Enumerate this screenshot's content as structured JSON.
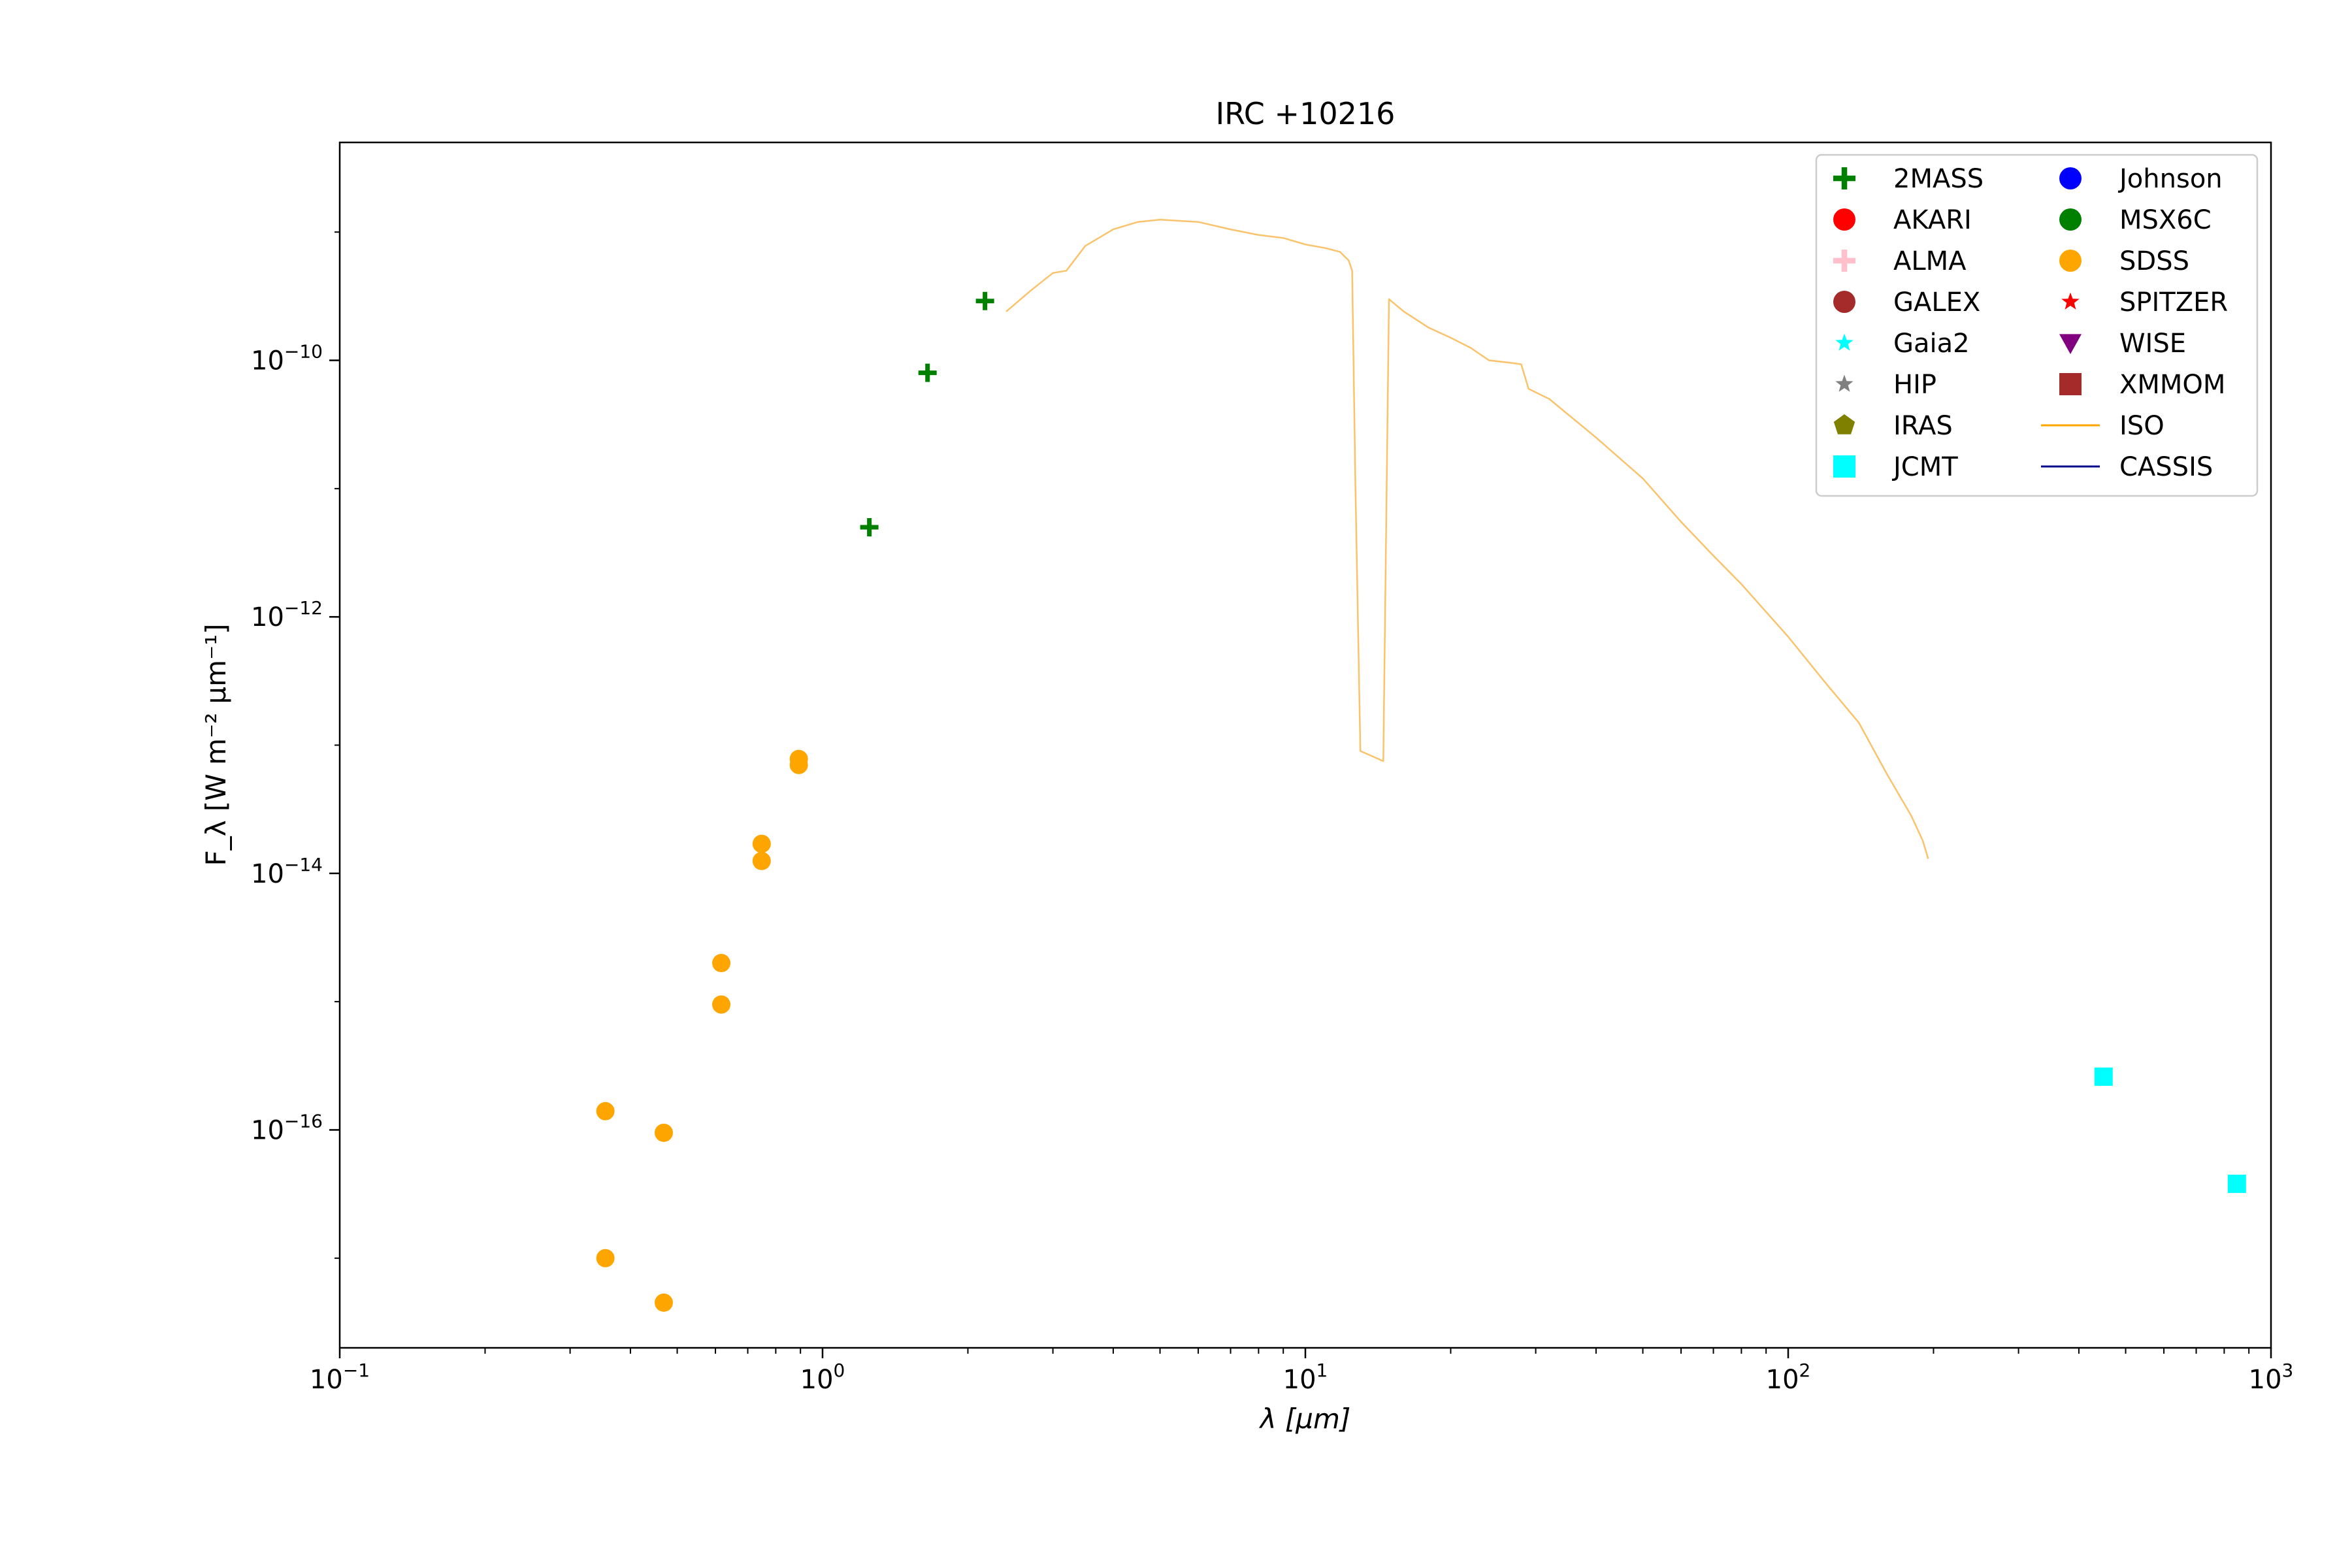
{
  "chart_data": {
    "type": "scatter",
    "title": "IRC +10216",
    "xlabel": "λ [μm]",
    "ylabel": "F_λ [W m⁻² μm⁻¹]",
    "xscale": "log",
    "yscale": "log",
    "xlim": [
      0.1,
      1000
    ],
    "ylim": [
      2e-18,
      5e-09
    ],
    "x_ticks": [
      {
        "value": 0.1,
        "base": "10",
        "exp": "−1"
      },
      {
        "value": 1,
        "base": "10",
        "exp": "0"
      },
      {
        "value": 10,
        "base": "10",
        "exp": "1"
      },
      {
        "value": 100,
        "base": "10",
        "exp": "2"
      },
      {
        "value": 1000,
        "base": "10",
        "exp": "3"
      }
    ],
    "y_ticks": [
      {
        "value": 1e-16,
        "base": "10",
        "exp": "−16"
      },
      {
        "value": 1e-14,
        "base": "10",
        "exp": "−14"
      },
      {
        "value": 1e-12,
        "base": "10",
        "exp": "−12"
      },
      {
        "value": 1e-10,
        "base": "10",
        "exp": "−10"
      }
    ],
    "legend": {
      "position": "top-right",
      "columns": 2,
      "entries": [
        {
          "label": "2MASS",
          "marker": "plus",
          "color": "#008000"
        },
        {
          "label": "AKARI",
          "marker": "circle",
          "color": "#ff0000"
        },
        {
          "label": "ALMA",
          "marker": "plus",
          "color": "#ffc0cb"
        },
        {
          "label": "GALEX",
          "marker": "circle",
          "color": "#a52a2a"
        },
        {
          "label": "Gaia2",
          "marker": "star",
          "color": "#00ffff"
        },
        {
          "label": "HIP",
          "marker": "star",
          "color": "#808080"
        },
        {
          "label": "IRAS",
          "marker": "pentagon",
          "color": "#808000"
        },
        {
          "label": "JCMT",
          "marker": "square",
          "color": "#00ffff"
        },
        {
          "label": "Johnson",
          "marker": "circle",
          "color": "#0000ff"
        },
        {
          "label": "MSX6C",
          "marker": "circle",
          "color": "#008000"
        },
        {
          "label": "SDSS",
          "marker": "circle",
          "color": "#ffa500"
        },
        {
          "label": "SPITZER",
          "marker": "star",
          "color": "#ff0000"
        },
        {
          "label": "WISE",
          "marker": "triangle-down",
          "color": "#800080"
        },
        {
          "label": "XMMOM",
          "marker": "square",
          "color": "#a52a2a"
        },
        {
          "label": "ISO",
          "marker": "line",
          "color": "#ffa500"
        },
        {
          "label": "CASSIS",
          "marker": "line",
          "color": "#00008b"
        }
      ]
    },
    "series": [
      {
        "name": "2MASS",
        "marker": "plus",
        "color": "#008000",
        "points": [
          [
            1.25,
            5e-12
          ],
          [
            1.65,
            8e-11
          ],
          [
            2.17,
            2.9e-10
          ]
        ]
      },
      {
        "name": "SDSS",
        "marker": "circle",
        "color": "#ffa500",
        "points": [
          [
            0.355,
            1.4e-16
          ],
          [
            0.355,
            1e-17
          ],
          [
            0.469,
            9.5e-17
          ],
          [
            0.469,
            4.5e-18
          ],
          [
            0.617,
            2e-15
          ],
          [
            0.617,
            9.5e-16
          ],
          [
            0.748,
            1.7e-14
          ],
          [
            0.748,
            1.25e-14
          ],
          [
            0.893,
            7.8e-14
          ],
          [
            0.893,
            7e-14
          ]
        ]
      },
      {
        "name": "JCMT",
        "marker": "square",
        "color": "#00ffff",
        "points": [
          [
            450,
            2.6e-16
          ],
          [
            850,
            3.8e-17
          ]
        ]
      },
      {
        "name": "ISO",
        "marker": "line",
        "color": "#fac36b",
        "points": [
          [
            2.4,
            2.4e-10
          ],
          [
            2.7,
            3.5e-10
          ],
          [
            3.0,
            4.8e-10
          ],
          [
            3.2,
            5e-10
          ],
          [
            3.5,
            7.8e-10
          ],
          [
            4.0,
            1.05e-09
          ],
          [
            4.5,
            1.2e-09
          ],
          [
            5.0,
            1.25e-09
          ],
          [
            6.0,
            1.2e-09
          ],
          [
            7.0,
            1.05e-09
          ],
          [
            8.0,
            9.5e-10
          ],
          [
            9.0,
            9e-10
          ],
          [
            10.0,
            8e-10
          ],
          [
            11.0,
            7.5e-10
          ],
          [
            11.8,
            7e-10
          ],
          [
            12.3,
            6e-10
          ],
          [
            12.5,
            5e-10
          ],
          [
            12.7,
            1e-11
          ],
          [
            13.0,
            9e-14
          ],
          [
            14.5,
            7.5e-14
          ],
          [
            14.9,
            3e-10
          ],
          [
            16.0,
            2.4e-10
          ],
          [
            18.0,
            1.8e-10
          ],
          [
            20.0,
            1.5e-10
          ],
          [
            22.0,
            1.25e-10
          ],
          [
            24.0,
            1e-10
          ],
          [
            27.0,
            9.5e-11
          ],
          [
            28.0,
            9.3e-11
          ],
          [
            29.0,
            6e-11
          ],
          [
            32.0,
            5e-11
          ],
          [
            40.0,
            2.5e-11
          ],
          [
            50.0,
            1.2e-11
          ],
          [
            60.0,
            5.5e-12
          ],
          [
            70.0,
            3e-12
          ],
          [
            80.0,
            1.8e-12
          ],
          [
            100.0,
            7e-13
          ],
          [
            120.0,
            3e-13
          ],
          [
            140.0,
            1.5e-13
          ],
          [
            160.0,
            6e-14
          ],
          [
            180.0,
            2.8e-14
          ],
          [
            190.0,
            1.8e-14
          ],
          [
            195.0,
            1.3e-14
          ]
        ]
      }
    ]
  }
}
